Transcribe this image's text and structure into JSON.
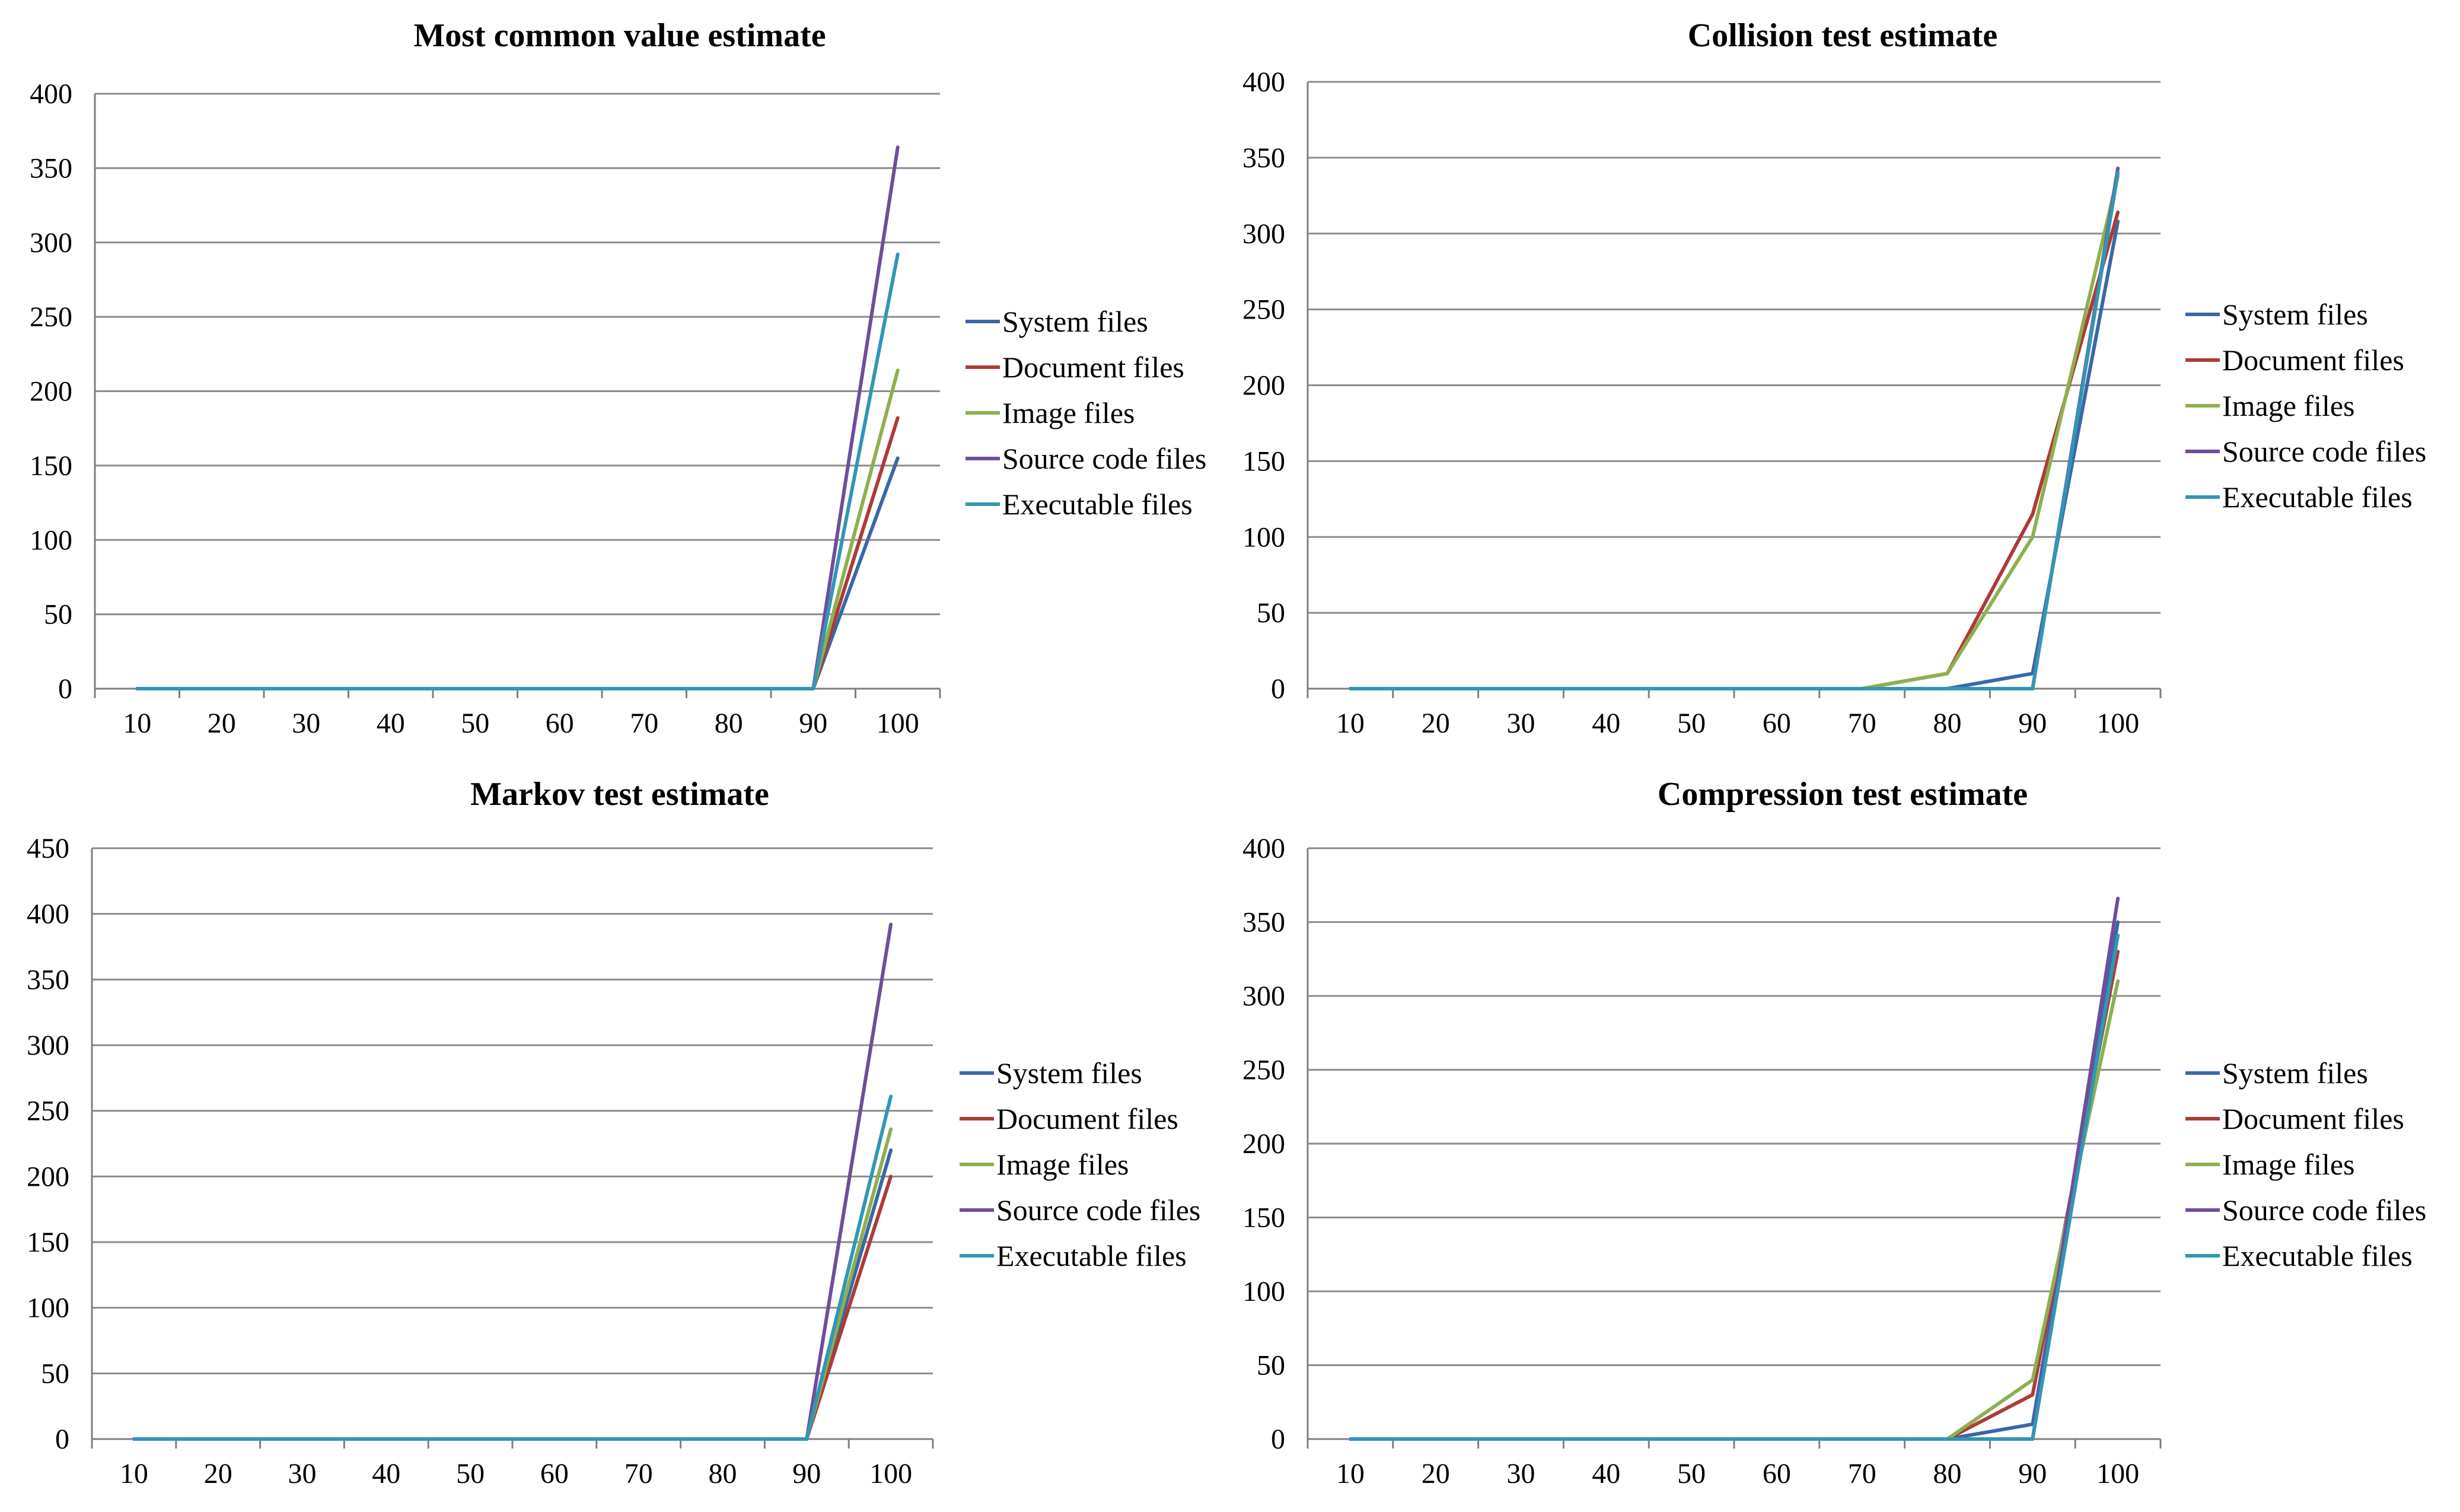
{
  "series_colors": [
    "#3b67a8",
    "#ad3b38",
    "#8db04e",
    "#6f4e99",
    "#3296b4"
  ],
  "chart_data": [
    {
      "type": "line",
      "title": "Most common value estimate",
      "xlabel": "",
      "ylabel": "",
      "categories": [
        "10",
        "20",
        "30",
        "40",
        "50",
        "60",
        "70",
        "80",
        "90",
        "100"
      ],
      "ylim": [
        0,
        400
      ],
      "yticks": [
        "0",
        "50",
        "100",
        "150",
        "200",
        "250",
        "300",
        "350",
        "400"
      ],
      "legend_position": "right",
      "grid": true,
      "series": [
        {
          "name": "System files",
          "values": [
            0,
            0,
            0,
            0,
            0,
            0,
            0,
            0,
            0,
            155
          ]
        },
        {
          "name": "Document files",
          "values": [
            0,
            0,
            0,
            0,
            0,
            0,
            0,
            0,
            0,
            182
          ]
        },
        {
          "name": "Image files",
          "values": [
            0,
            0,
            0,
            0,
            0,
            0,
            0,
            0,
            0,
            214
          ]
        },
        {
          "name": "Source code files",
          "values": [
            0,
            0,
            0,
            0,
            0,
            0,
            0,
            0,
            0,
            364
          ]
        },
        {
          "name": "Executable files",
          "values": [
            0,
            0,
            0,
            0,
            0,
            0,
            0,
            0,
            0,
            292
          ]
        }
      ]
    },
    {
      "type": "line",
      "title": "Collision test estimate",
      "xlabel": "",
      "ylabel": "",
      "categories": [
        "10",
        "20",
        "30",
        "40",
        "50",
        "60",
        "70",
        "80",
        "90",
        "100"
      ],
      "ylim": [
        0,
        400
      ],
      "yticks": [
        "0",
        "50",
        "100",
        "150",
        "200",
        "250",
        "300",
        "350",
        "400"
      ],
      "legend_position": "right",
      "grid": true,
      "series": [
        {
          "name": "System files",
          "values": [
            0,
            0,
            0,
            0,
            0,
            0,
            0,
            0,
            10,
            308
          ]
        },
        {
          "name": "Document files",
          "values": [
            0,
            0,
            0,
            0,
            0,
            0,
            0,
            10,
            115,
            314
          ]
        },
        {
          "name": "Image files",
          "values": [
            0,
            0,
            0,
            0,
            0,
            0,
            0,
            10,
            100,
            338
          ]
        },
        {
          "name": "Source code files",
          "values": [
            0,
            0,
            0,
            0,
            0,
            0,
            0,
            0,
            0,
            343
          ]
        },
        {
          "name": "Executable files",
          "values": [
            0,
            0,
            0,
            0,
            0,
            0,
            0,
            0,
            0,
            340
          ]
        }
      ]
    },
    {
      "type": "line",
      "title": "Markov test estimate",
      "xlabel": "",
      "ylabel": "",
      "categories": [
        "10",
        "20",
        "30",
        "40",
        "50",
        "60",
        "70",
        "80",
        "90",
        "100"
      ],
      "ylim": [
        0,
        450
      ],
      "yticks": [
        "0",
        "50",
        "100",
        "150",
        "200",
        "250",
        "300",
        "350",
        "400",
        "450"
      ],
      "legend_position": "right",
      "grid": true,
      "series": [
        {
          "name": "System files",
          "values": [
            0,
            0,
            0,
            0,
            0,
            0,
            0,
            0,
            0,
            220
          ]
        },
        {
          "name": "Document files",
          "values": [
            0,
            0,
            0,
            0,
            0,
            0,
            0,
            0,
            0,
            200
          ]
        },
        {
          "name": "Image files",
          "values": [
            0,
            0,
            0,
            0,
            0,
            0,
            0,
            0,
            0,
            236
          ]
        },
        {
          "name": "Source code files",
          "values": [
            0,
            0,
            0,
            0,
            0,
            0,
            0,
            0,
            0,
            392
          ]
        },
        {
          "name": "Executable files",
          "values": [
            0,
            0,
            0,
            0,
            0,
            0,
            0,
            0,
            0,
            261
          ]
        }
      ]
    },
    {
      "type": "line",
      "title": "Compression test estimate",
      "xlabel": "",
      "ylabel": "",
      "categories": [
        "10",
        "20",
        "30",
        "40",
        "50",
        "60",
        "70",
        "80",
        "90",
        "100"
      ],
      "ylim": [
        0,
        400
      ],
      "yticks": [
        "0",
        "50",
        "100",
        "150",
        "200",
        "250",
        "300",
        "350",
        "400"
      ],
      "legend_position": "right",
      "grid": true,
      "series": [
        {
          "name": "System files",
          "values": [
            0,
            0,
            0,
            0,
            0,
            0,
            0,
            0,
            10,
            350
          ]
        },
        {
          "name": "Document files",
          "values": [
            0,
            0,
            0,
            0,
            0,
            0,
            0,
            0,
            30,
            330
          ]
        },
        {
          "name": "Image files",
          "values": [
            0,
            0,
            0,
            0,
            0,
            0,
            0,
            0,
            40,
            310
          ]
        },
        {
          "name": "Source code files",
          "values": [
            0,
            0,
            0,
            0,
            0,
            0,
            0,
            0,
            0,
            366
          ]
        },
        {
          "name": "Executable files",
          "values": [
            0,
            0,
            0,
            0,
            0,
            0,
            0,
            0,
            0,
            341
          ]
        }
      ]
    }
  ]
}
